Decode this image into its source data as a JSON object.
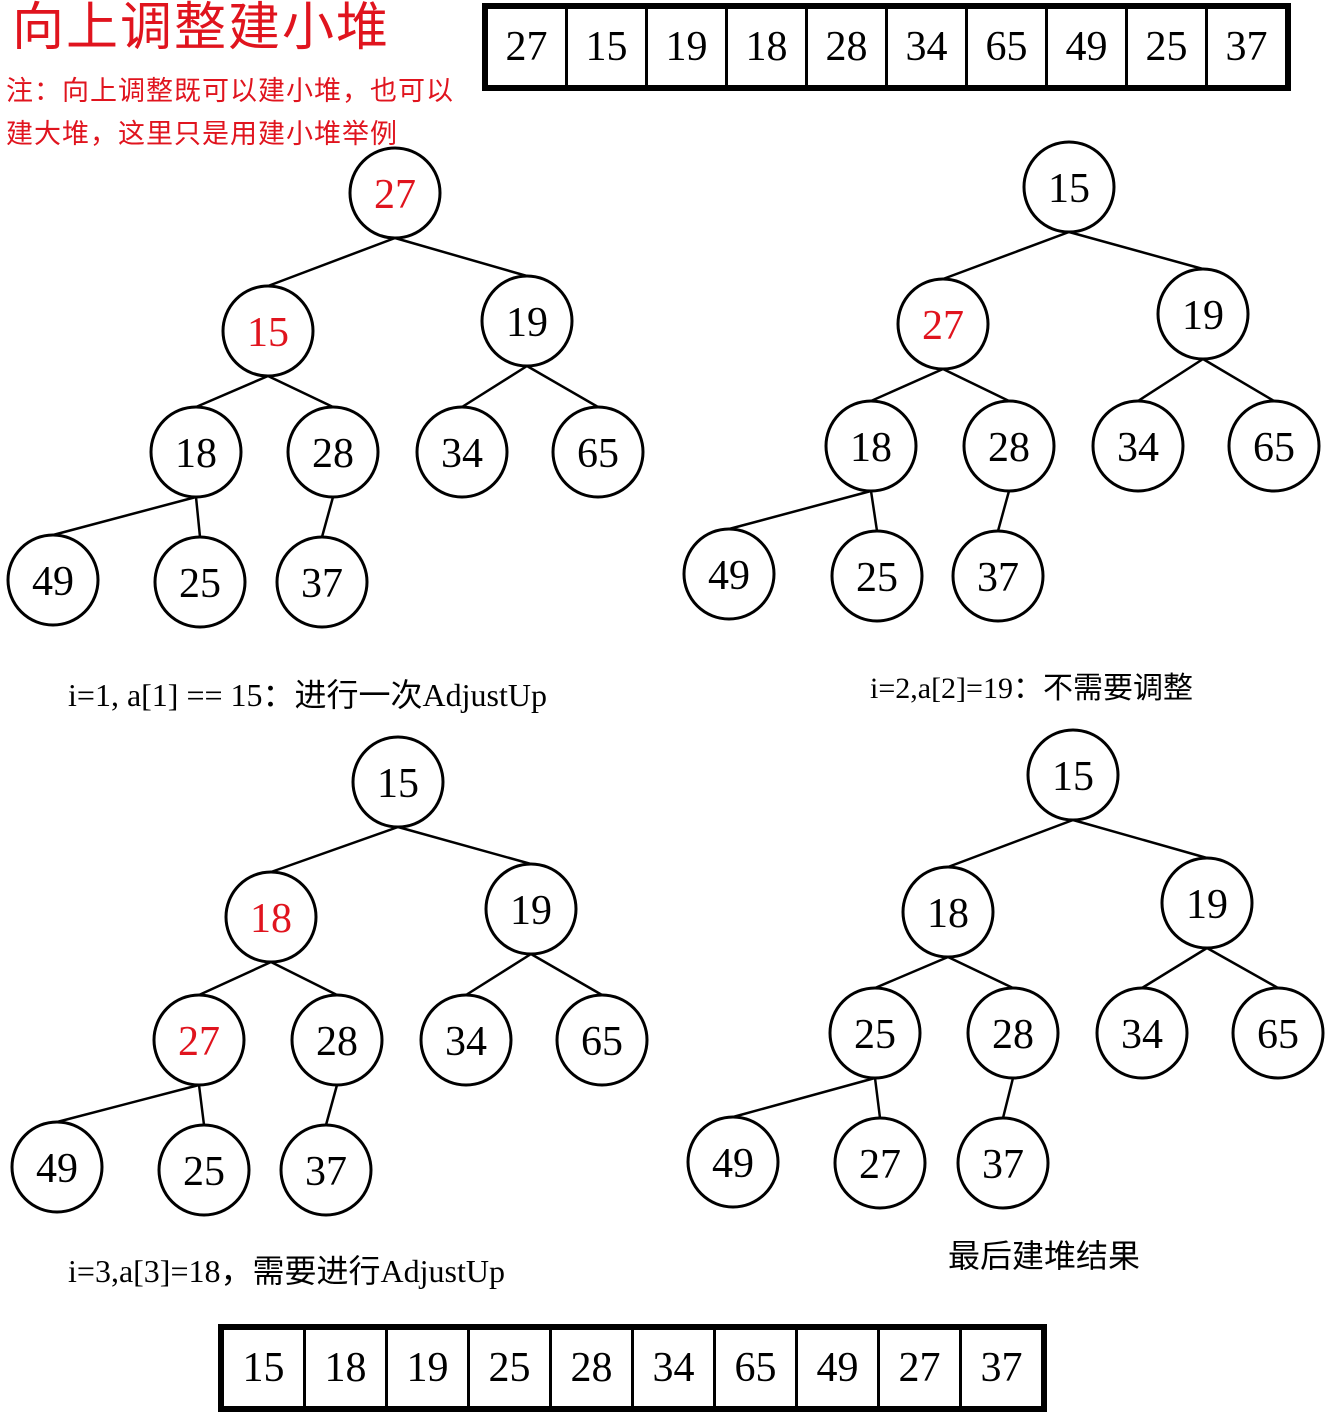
{
  "title": "向上调整建小堆",
  "note": "注：向上调整既可以建小堆，也可以建大堆，这里只是用建小堆举例",
  "colors": {
    "highlight": "#e0141e",
    "normal": "#000000",
    "background": "#ffffff"
  },
  "initial_array": [
    "27",
    "15",
    "19",
    "18",
    "28",
    "34",
    "65",
    "49",
    "25",
    "37"
  ],
  "final_array": [
    "15",
    "18",
    "19",
    "25",
    "28",
    "34",
    "65",
    "49",
    "27",
    "37"
  ],
  "trees": [
    {
      "caption": "i=1, a[1] == 15：进行一次AdjustUp",
      "values": [
        "27",
        "15",
        "19",
        "18",
        "28",
        "34",
        "65",
        "49",
        "25",
        "37"
      ],
      "highlight": [
        0,
        1
      ]
    },
    {
      "caption": "i=2,a[2]=19：不需要调整",
      "values": [
        "15",
        "27",
        "19",
        "18",
        "28",
        "34",
        "65",
        "49",
        "25",
        "37"
      ],
      "highlight": [
        1
      ]
    },
    {
      "caption": "i=3,a[3]=18，需要进行AdjustUp",
      "values": [
        "15",
        "18",
        "19",
        "27",
        "28",
        "34",
        "65",
        "49",
        "25",
        "37"
      ],
      "highlight": [
        1,
        3
      ]
    },
    {
      "caption": "最后建堆结果",
      "values": [
        "15",
        "18",
        "19",
        "25",
        "28",
        "34",
        "65",
        "49",
        "27",
        "37"
      ],
      "highlight": []
    }
  ]
}
